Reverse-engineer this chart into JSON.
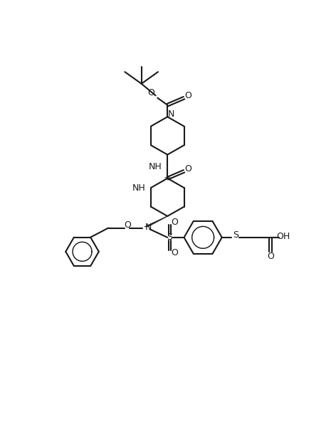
{
  "bg_color": "#ffffff",
  "line_color": "#1a1a1a",
  "line_width": 1.5,
  "font_size": 9.0,
  "figsize": [
    4.72,
    5.92
  ],
  "dpi": 100,
  "xlim": [
    -5,
    105
  ],
  "ylim": [
    -5,
    130
  ]
}
